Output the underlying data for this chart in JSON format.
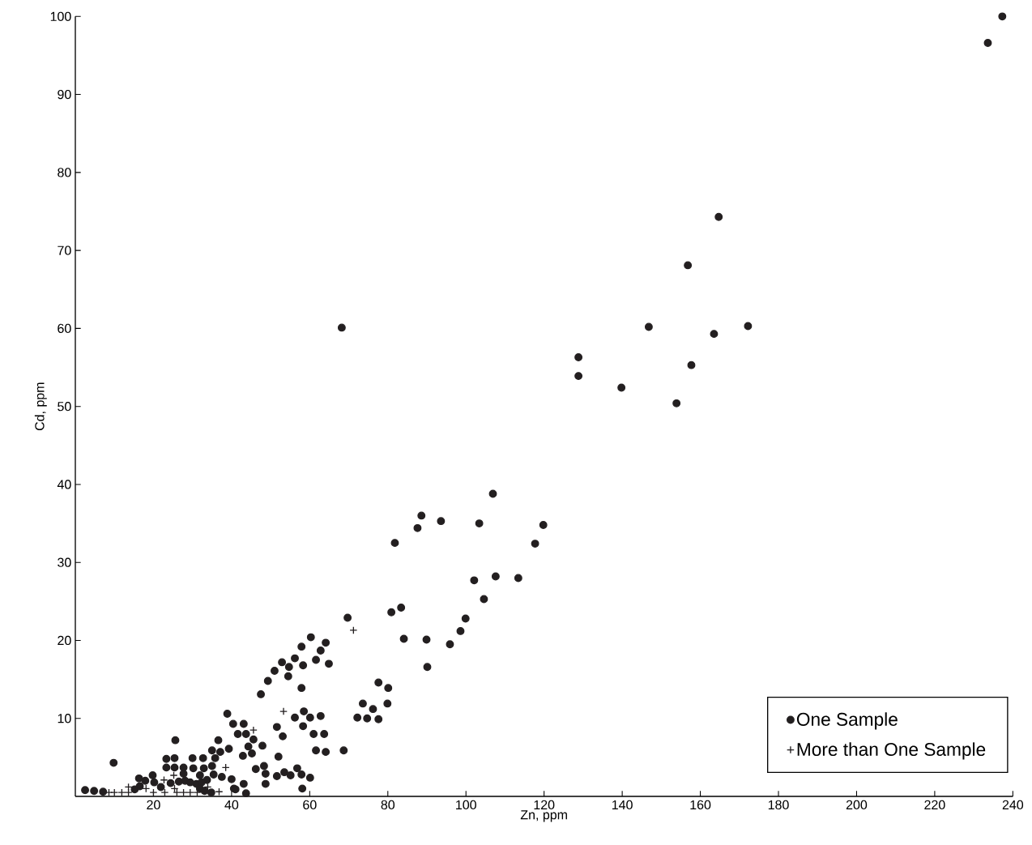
{
  "chart_data": {
    "type": "scatter",
    "xlabel": "Zn, ppm",
    "ylabel": "Cd, ppm",
    "xlim": [
      0,
      240
    ],
    "ylim": [
      0,
      100
    ],
    "xticks": [
      20,
      40,
      60,
      80,
      100,
      120,
      140,
      160,
      180,
      200,
      220,
      240
    ],
    "yticks": [
      10,
      20,
      30,
      40,
      50,
      60,
      70,
      80,
      90,
      100
    ],
    "grid": false,
    "legend": "bottom right",
    "series": [
      {
        "name": "One Sample",
        "color": "#231f20",
        "marker": "circle",
        "x": [
          2.5,
          4.8,
          7.1,
          9.8,
          25.6,
          38.9,
          40.4,
          36.6,
          39.3,
          35.0,
          37.1,
          23.3,
          25.4,
          30.0,
          32.7,
          35.8,
          23.3,
          25.4,
          27.7,
          30.2,
          32.9,
          35.0,
          27.7,
          31.9,
          35.4,
          37.5,
          40.0,
          16.3,
          17.9,
          19.8,
          20.2,
          24.4,
          26.5,
          28.1,
          29.4,
          31.0,
          32.3,
          33.7,
          16.5,
          15.2,
          21.9,
          31.9,
          33.1,
          34.8,
          40.6,
          69.7,
          80.9,
          83.4,
          84.1,
          60.3,
          64.1,
          57.9,
          62.8,
          56.2,
          61.6,
          64.9,
          52.9,
          54.7,
          58.3,
          51.0,
          54.5,
          49.3,
          57.9,
          47.5,
          77.6,
          80.1,
          73.6,
          76.2,
          79.9,
          72.2,
          74.7,
          77.6,
          58.5,
          56.2,
          60.1,
          62.8,
          58.3,
          51.6,
          53.1,
          61.0,
          63.7,
          61.6,
          64.1,
          68.7,
          52.0,
          43.1,
          41.6,
          43.7,
          45.6,
          44.3,
          47.9,
          42.9,
          45.2,
          46.2,
          48.3,
          48.7,
          51.6,
          53.5,
          55.1,
          56.8,
          57.9,
          60.1,
          43.1,
          48.7,
          41.0,
          43.7,
          58.1,
          106.9,
          88.6,
          87.6,
          93.6,
          103.4,
          81.8,
          119.8,
          117.7,
          102.1,
          107.6,
          113.4,
          104.6,
          99.9,
          98.6,
          95.9,
          89.9,
          90.1,
          68.2,
          128.8,
          128.8,
          139.8,
          146.8,
          153.9,
          156.8,
          157.7,
          163.5,
          164.7,
          172.2,
          233.6,
          237.3
        ],
        "values": [
          0.8,
          0.7,
          0.6,
          4.3,
          7.2,
          10.6,
          9.3,
          7.2,
          6.1,
          5.9,
          5.7,
          4.8,
          4.9,
          4.9,
          4.9,
          4.9,
          3.7,
          3.7,
          3.7,
          3.6,
          3.6,
          3.9,
          2.9,
          2.7,
          2.8,
          2.5,
          2.2,
          2.3,
          2.0,
          2.7,
          1.8,
          1.7,
          1.9,
          2.0,
          1.8,
          1.6,
          1.8,
          2.1,
          1.3,
          0.9,
          1.2,
          1.0,
          0.7,
          0.5,
          1.0,
          22.9,
          23.6,
          24.2,
          20.2,
          20.4,
          19.7,
          19.2,
          18.7,
          17.7,
          17.5,
          17.0,
          17.2,
          16.6,
          16.8,
          16.1,
          15.4,
          14.8,
          13.9,
          13.1,
          14.6,
          13.9,
          11.9,
          11.2,
          11.9,
          10.1,
          10.0,
          9.9,
          10.9,
          10.1,
          10.1,
          10.3,
          9.0,
          8.9,
          7.7,
          8.0,
          8.0,
          5.9,
          5.7,
          5.9,
          5.1,
          9.3,
          8.0,
          8.0,
          7.3,
          6.4,
          6.5,
          5.2,
          5.5,
          3.5,
          3.9,
          2.9,
          2.6,
          3.1,
          2.7,
          3.6,
          2.8,
          2.4,
          1.6,
          1.6,
          0.9,
          0.4,
          1.0,
          38.8,
          36.0,
          34.4,
          35.3,
          35.0,
          32.5,
          34.8,
          32.4,
          27.7,
          28.2,
          28.0,
          25.3,
          22.8,
          21.2,
          19.5,
          20.1,
          16.6,
          60.1,
          56.3,
          53.9,
          52.4,
          60.2,
          50.4,
          68.1,
          55.3,
          59.3,
          74.3,
          60.3,
          96.6,
          100.0
        ]
      },
      {
        "name": "More than One Sample",
        "color": "#231f20",
        "marker": "cross",
        "x": [
          8.6,
          10.0,
          11.9,
          13.6,
          13.6,
          15.8,
          18.1,
          20.0,
          22.7,
          22.9,
          25.2,
          25.4,
          26.0,
          27.7,
          29.4,
          31.2,
          33.9,
          36.8,
          38.5,
          71.2,
          53.3,
          45.6
        ],
        "values": [
          0.5,
          0.5,
          0.5,
          1.2,
          0.5,
          null,
          1.0,
          0.5,
          2.1,
          0.5,
          2.7,
          1.0,
          0.5,
          0.5,
          0.5,
          0.5,
          1.2,
          0.6,
          3.7,
          21.3,
          10.9,
          8.5
        ]
      }
    ]
  }
}
